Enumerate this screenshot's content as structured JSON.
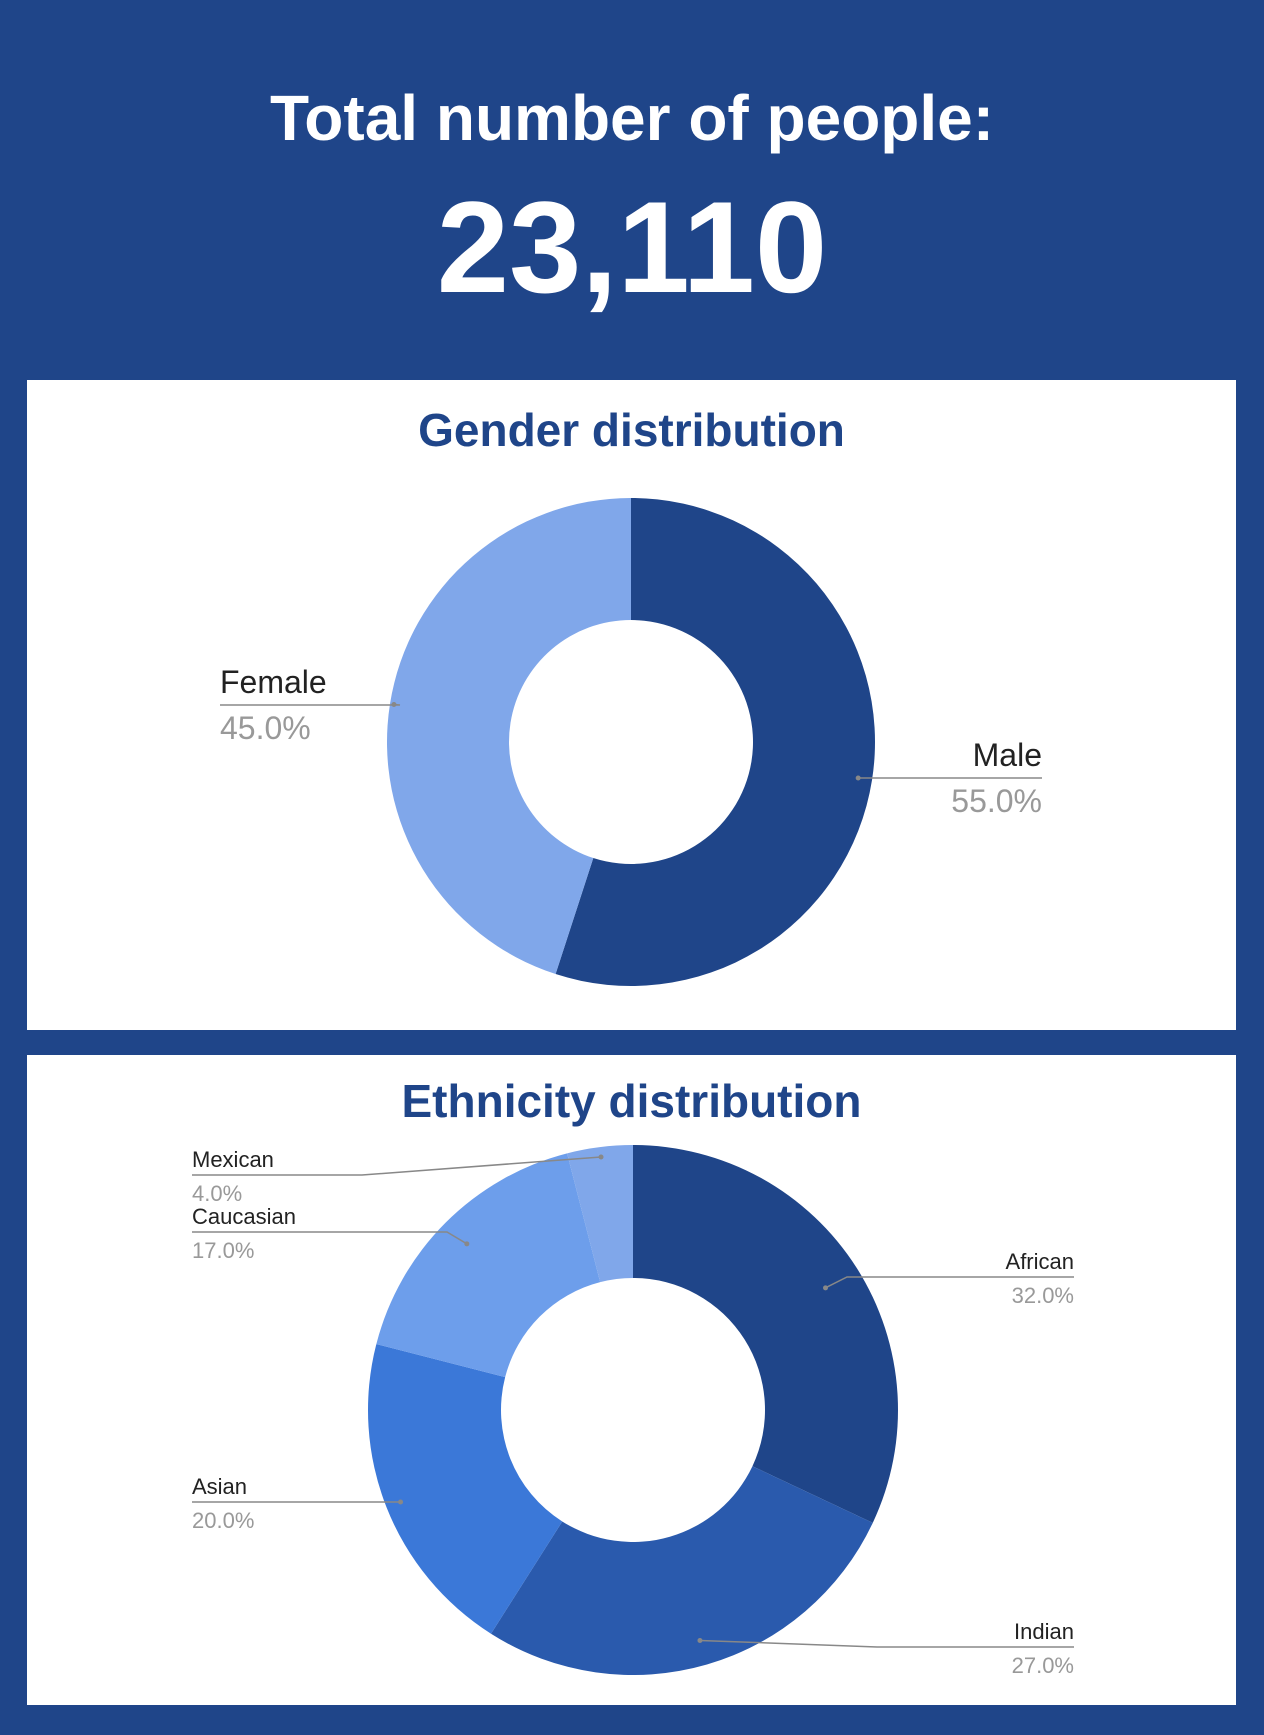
{
  "header": {
    "label": "Total number of people:",
    "value": "23,110"
  },
  "colors": {
    "background": "#1f4589",
    "panel": "#ffffff",
    "title": "#1f4589",
    "leader_line": "#888888",
    "label_name": "#222222",
    "label_percent": "#999999"
  },
  "chart_data": [
    {
      "type": "pie",
      "style": "donut",
      "title": "Gender distribution",
      "categories": [
        "Male",
        "Female"
      ],
      "values": [
        55.0,
        45.0
      ],
      "labels": [
        "55.0%",
        "45.0%"
      ],
      "colors": [
        "#1f4589",
        "#80a7ea"
      ]
    },
    {
      "type": "pie",
      "style": "donut",
      "title": "Ethnicity distribution",
      "categories": [
        "African",
        "Indian",
        "Asian",
        "Caucasian",
        "Mexican"
      ],
      "values": [
        32.0,
        27.0,
        20.0,
        17.0,
        4.0
      ],
      "labels": [
        "32.0%",
        "27.0%",
        "20.0%",
        "17.0%",
        "4.0%"
      ],
      "colors": [
        "#1f4589",
        "#2a5aad",
        "#3b78d8",
        "#6d9eeb",
        "#80a7ea"
      ]
    }
  ]
}
